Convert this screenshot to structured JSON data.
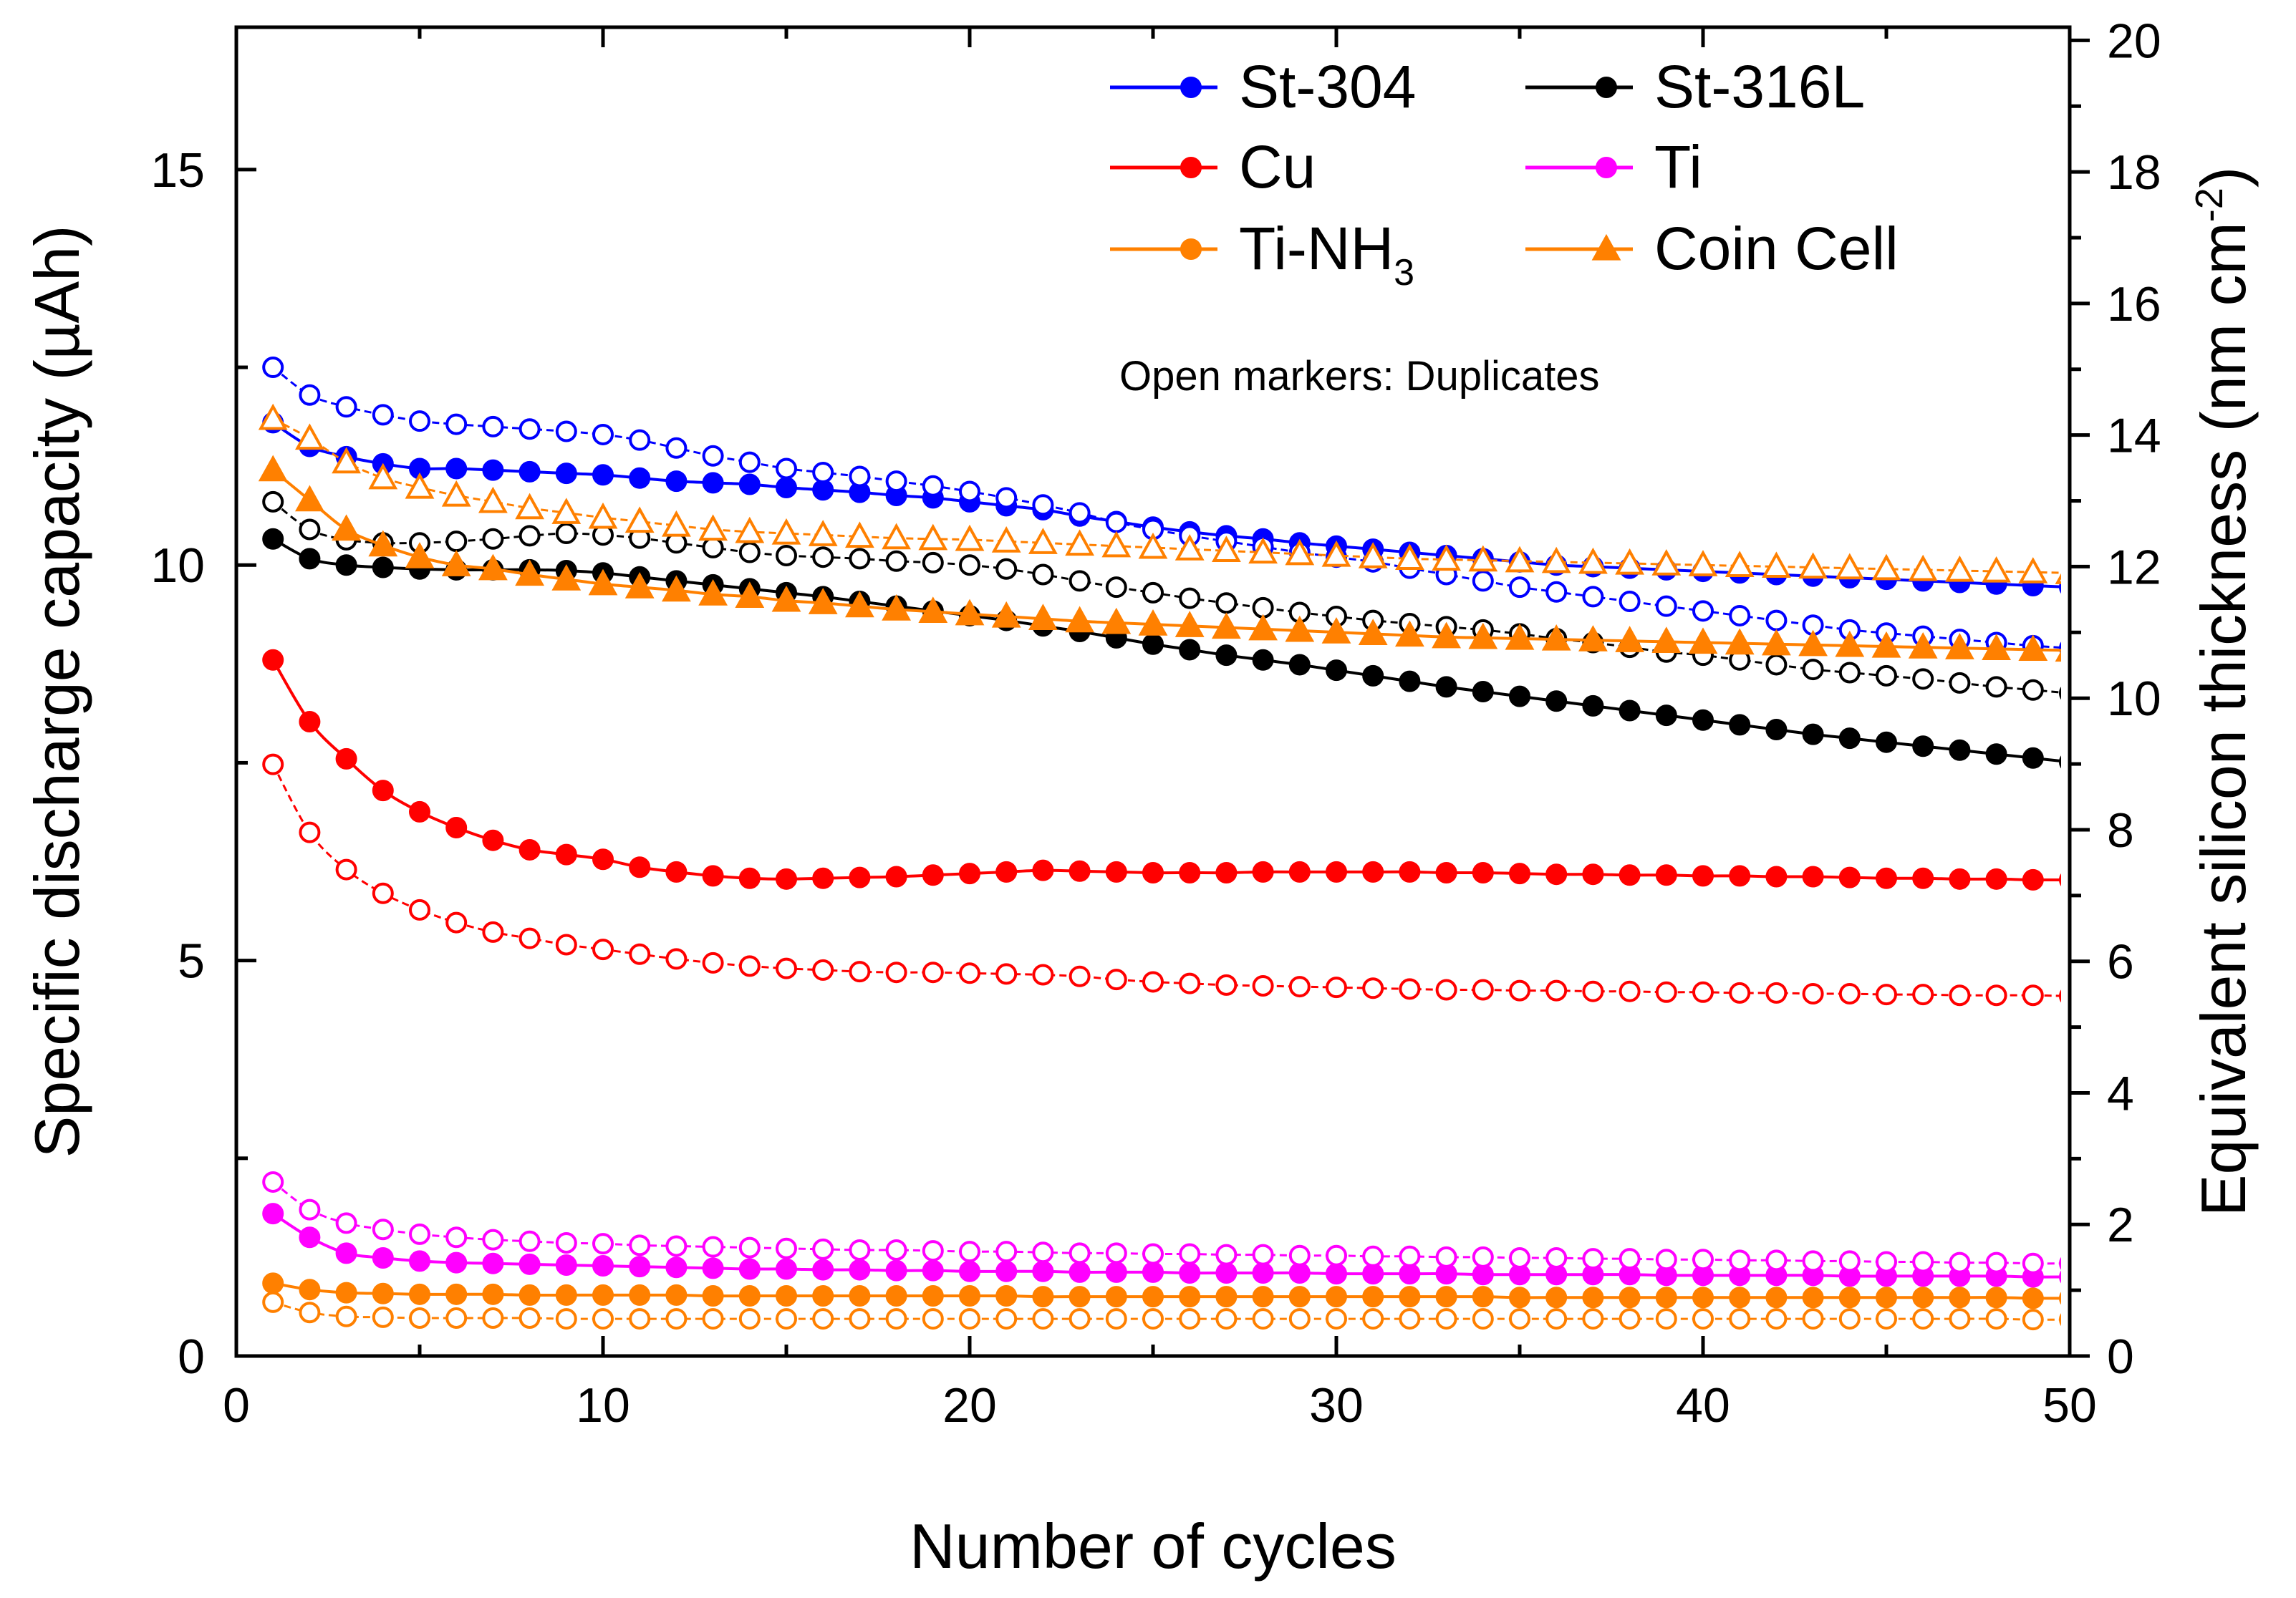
{
  "chart_data": {
    "type": "line",
    "xlabel": "Number of cycles",
    "ylabel": "Specific discharge capacity (µAh)",
    "y2label": "Equivalent silicon thickness (nm cm",
    "y2label_sup": "-2",
    "y2label_end": ")",
    "xlim": [
      0,
      50
    ],
    "ylim": [
      0,
      16.8
    ],
    "y2lim": [
      0,
      20.2
    ],
    "xticks": [
      0,
      10,
      20,
      30,
      40,
      50
    ],
    "yticks": [
      0,
      5,
      10,
      15
    ],
    "y2ticks": [
      0,
      2,
      4,
      6,
      8,
      10,
      12,
      14,
      16,
      18,
      20
    ],
    "x": [
      1,
      2,
      3,
      4,
      5,
      6,
      7,
      8,
      9,
      10,
      11,
      12,
      13,
      14,
      15,
      16,
      17,
      18,
      19,
      20,
      21,
      22,
      23,
      24,
      25,
      26,
      27,
      28,
      29,
      30,
      31,
      32,
      33,
      34,
      35,
      36,
      37,
      38,
      39,
      40,
      41,
      42,
      43,
      44,
      45,
      46,
      47,
      48,
      49,
      50
    ],
    "legend": {
      "note": "Open markers: Duplicates",
      "entries": [
        {
          "label": "St-304",
          "color": "#0000ff",
          "marker": "circle"
        },
        {
          "label": "St-316L",
          "color": "#000000",
          "marker": "circle"
        },
        {
          "label": "Cu",
          "color": "#ff0000",
          "marker": "circle"
        },
        {
          "label": "Ti",
          "color": "#ff00ff",
          "marker": "circle"
        },
        {
          "label": "Ti-NH",
          "sub": "3",
          "color": "#ff8000",
          "marker": "circle"
        },
        {
          "label": "Coin Cell",
          "color": "#ff8000",
          "marker": "triangle"
        }
      ]
    },
    "series": [
      {
        "name": "St-304",
        "color": "#0000ff",
        "marker": "circle",
        "filled": true,
        "values": [
          11.8,
          11.5,
          11.37,
          11.28,
          11.22,
          11.22,
          11.2,
          11.18,
          11.16,
          11.14,
          11.1,
          11.06,
          11.04,
          11.02,
          10.98,
          10.95,
          10.92,
          10.88,
          10.85,
          10.8,
          10.75,
          10.7,
          10.62,
          10.55,
          10.48,
          10.42,
          10.37,
          10.33,
          10.28,
          10.24,
          10.2,
          10.16,
          10.12,
          10.08,
          10.04,
          10.0,
          9.98,
          9.96,
          9.94,
          9.92,
          9.9,
          9.88,
          9.86,
          9.84,
          9.82,
          9.8,
          9.78,
          9.76,
          9.74,
          9.72
        ]
      },
      {
        "name": "St-304 duplicate",
        "color": "#0000ff",
        "marker": "circle",
        "filled": false,
        "values": [
          12.5,
          12.15,
          12.0,
          11.9,
          11.82,
          11.78,
          11.75,
          11.72,
          11.69,
          11.65,
          11.58,
          11.48,
          11.38,
          11.3,
          11.22,
          11.17,
          11.12,
          11.06,
          11.0,
          10.93,
          10.85,
          10.76,
          10.66,
          10.54,
          10.45,
          10.37,
          10.3,
          10.23,
          10.16,
          10.1,
          10.04,
          9.96,
          9.88,
          9.8,
          9.72,
          9.66,
          9.6,
          9.54,
          9.48,
          9.42,
          9.36,
          9.3,
          9.24,
          9.18,
          9.14,
          9.1,
          9.06,
          9.02,
          8.98,
          8.95
        ]
      },
      {
        "name": "St-316L",
        "color": "#000000",
        "marker": "circle",
        "filled": true,
        "values": [
          10.33,
          10.08,
          10.0,
          9.97,
          9.95,
          9.94,
          9.94,
          9.94,
          9.93,
          9.9,
          9.85,
          9.8,
          9.75,
          9.7,
          9.65,
          9.6,
          9.54,
          9.48,
          9.42,
          9.36,
          9.3,
          9.23,
          9.16,
          9.08,
          9.0,
          8.93,
          8.86,
          8.8,
          8.74,
          8.67,
          8.6,
          8.53,
          8.46,
          8.4,
          8.34,
          8.28,
          8.22,
          8.16,
          8.1,
          8.04,
          7.98,
          7.92,
          7.86,
          7.81,
          7.76,
          7.71,
          7.66,
          7.61,
          7.56,
          7.51
        ]
      },
      {
        "name": "St-316L duplicate",
        "color": "#000000",
        "marker": "circle",
        "filled": false,
        "values": [
          10.8,
          10.45,
          10.32,
          10.28,
          10.28,
          10.3,
          10.33,
          10.37,
          10.4,
          10.38,
          10.34,
          10.28,
          10.22,
          10.16,
          10.12,
          10.1,
          10.08,
          10.05,
          10.03,
          10.0,
          9.95,
          9.88,
          9.8,
          9.72,
          9.65,
          9.58,
          9.52,
          9.46,
          9.4,
          9.35,
          9.3,
          9.26,
          9.22,
          9.18,
          9.13,
          9.07,
          9.02,
          8.96,
          8.9,
          8.86,
          8.8,
          8.74,
          8.68,
          8.64,
          8.6,
          8.56,
          8.51,
          8.46,
          8.42,
          8.38
        ]
      },
      {
        "name": "Cu",
        "color": "#ff0000",
        "marker": "circle",
        "filled": true,
        "values": [
          8.8,
          8.02,
          7.55,
          7.15,
          6.88,
          6.68,
          6.52,
          6.4,
          6.34,
          6.28,
          6.18,
          6.12,
          6.07,
          6.04,
          6.03,
          6.04,
          6.05,
          6.06,
          6.08,
          6.1,
          6.12,
          6.14,
          6.13,
          6.12,
          6.11,
          6.11,
          6.11,
          6.12,
          6.12,
          6.12,
          6.12,
          6.12,
          6.11,
          6.11,
          6.1,
          6.09,
          6.09,
          6.08,
          6.08,
          6.07,
          6.07,
          6.06,
          6.06,
          6.05,
          6.04,
          6.04,
          6.03,
          6.03,
          6.02,
          6.02
        ]
      },
      {
        "name": "Cu duplicate",
        "color": "#ff0000",
        "marker": "circle",
        "filled": false,
        "values": [
          7.48,
          6.62,
          6.15,
          5.85,
          5.64,
          5.48,
          5.36,
          5.28,
          5.2,
          5.14,
          5.08,
          5.02,
          4.97,
          4.93,
          4.9,
          4.88,
          4.86,
          4.85,
          4.85,
          4.84,
          4.83,
          4.82,
          4.8,
          4.76,
          4.73,
          4.71,
          4.69,
          4.68,
          4.67,
          4.66,
          4.65,
          4.64,
          4.63,
          4.63,
          4.62,
          4.62,
          4.61,
          4.61,
          4.6,
          4.6,
          4.59,
          4.59,
          4.58,
          4.58,
          4.57,
          4.57,
          4.56,
          4.56,
          4.56,
          4.55
        ]
      },
      {
        "name": "Ti",
        "color": "#ff00ff",
        "marker": "circle",
        "filled": true,
        "values": [
          1.8,
          1.5,
          1.3,
          1.24,
          1.2,
          1.18,
          1.17,
          1.16,
          1.15,
          1.14,
          1.13,
          1.12,
          1.11,
          1.1,
          1.1,
          1.09,
          1.09,
          1.08,
          1.08,
          1.07,
          1.07,
          1.07,
          1.06,
          1.06,
          1.06,
          1.05,
          1.05,
          1.05,
          1.05,
          1.04,
          1.04,
          1.04,
          1.04,
          1.03,
          1.03,
          1.03,
          1.03,
          1.03,
          1.02,
          1.02,
          1.02,
          1.02,
          1.02,
          1.01,
          1.01,
          1.01,
          1.01,
          1.01,
          1.0,
          1.0
        ]
      },
      {
        "name": "Ti duplicate",
        "color": "#ff00ff",
        "marker": "circle",
        "filled": false,
        "values": [
          2.2,
          1.85,
          1.68,
          1.6,
          1.54,
          1.5,
          1.47,
          1.45,
          1.43,
          1.42,
          1.4,
          1.39,
          1.38,
          1.37,
          1.36,
          1.35,
          1.34,
          1.34,
          1.33,
          1.32,
          1.32,
          1.31,
          1.3,
          1.3,
          1.29,
          1.29,
          1.28,
          1.28,
          1.27,
          1.27,
          1.26,
          1.26,
          1.25,
          1.25,
          1.24,
          1.24,
          1.23,
          1.23,
          1.22,
          1.22,
          1.21,
          1.21,
          1.2,
          1.2,
          1.19,
          1.19,
          1.18,
          1.18,
          1.17,
          1.17
        ]
      },
      {
        "name": "Ti-NH3",
        "color": "#ff8000",
        "marker": "circle",
        "filled": true,
        "values": [
          0.92,
          0.84,
          0.8,
          0.79,
          0.78,
          0.78,
          0.78,
          0.77,
          0.77,
          0.77,
          0.77,
          0.77,
          0.76,
          0.76,
          0.76,
          0.76,
          0.76,
          0.76,
          0.76,
          0.76,
          0.76,
          0.75,
          0.75,
          0.75,
          0.75,
          0.75,
          0.75,
          0.75,
          0.75,
          0.75,
          0.75,
          0.75,
          0.75,
          0.75,
          0.74,
          0.74,
          0.74,
          0.74,
          0.74,
          0.74,
          0.74,
          0.74,
          0.74,
          0.74,
          0.74,
          0.74,
          0.74,
          0.74,
          0.73,
          0.73
        ]
      },
      {
        "name": "Ti-NH3 duplicate",
        "color": "#ff8000",
        "marker": "circle",
        "filled": false,
        "values": [
          0.68,
          0.55,
          0.5,
          0.49,
          0.48,
          0.48,
          0.48,
          0.48,
          0.47,
          0.47,
          0.47,
          0.47,
          0.47,
          0.47,
          0.47,
          0.47,
          0.47,
          0.47,
          0.47,
          0.47,
          0.47,
          0.47,
          0.47,
          0.47,
          0.47,
          0.47,
          0.47,
          0.47,
          0.47,
          0.47,
          0.47,
          0.47,
          0.47,
          0.47,
          0.47,
          0.47,
          0.47,
          0.47,
          0.47,
          0.47,
          0.47,
          0.47,
          0.47,
          0.47,
          0.47,
          0.47,
          0.47,
          0.47,
          0.46,
          0.46
        ]
      },
      {
        "name": "Coin Cell",
        "color": "#ff8000",
        "marker": "triangle",
        "filled": true,
        "values": [
          11.2,
          10.82,
          10.45,
          10.25,
          10.1,
          10.0,
          9.95,
          9.88,
          9.82,
          9.76,
          9.72,
          9.68,
          9.63,
          9.6,
          9.55,
          9.52,
          9.48,
          9.44,
          9.41,
          9.38,
          9.35,
          9.32,
          9.29,
          9.27,
          9.25,
          9.23,
          9.21,
          9.19,
          9.17,
          9.15,
          9.13,
          9.11,
          9.09,
          9.08,
          9.07,
          9.06,
          9.05,
          9.04,
          9.03,
          9.02,
          9.01,
          9.0,
          8.99,
          8.98,
          8.97,
          8.96,
          8.95,
          8.94,
          8.93,
          8.92
        ]
      },
      {
        "name": "Coin Cell duplicate",
        "color": "#ff8000",
        "marker": "triangle",
        "filled": false,
        "values": [
          11.85,
          11.6,
          11.3,
          11.1,
          10.98,
          10.88,
          10.8,
          10.72,
          10.66,
          10.6,
          10.55,
          10.5,
          10.45,
          10.42,
          10.4,
          10.38,
          10.36,
          10.34,
          10.33,
          10.32,
          10.3,
          10.28,
          10.26,
          10.24,
          10.22,
          10.2,
          10.18,
          10.16,
          10.14,
          10.12,
          10.1,
          10.08,
          10.07,
          10.06,
          10.05,
          10.04,
          10.03,
          10.02,
          10.01,
          10.0,
          9.99,
          9.98,
          9.97,
          9.96,
          9.95,
          9.94,
          9.93,
          9.92,
          9.91,
          9.9
        ]
      }
    ]
  }
}
